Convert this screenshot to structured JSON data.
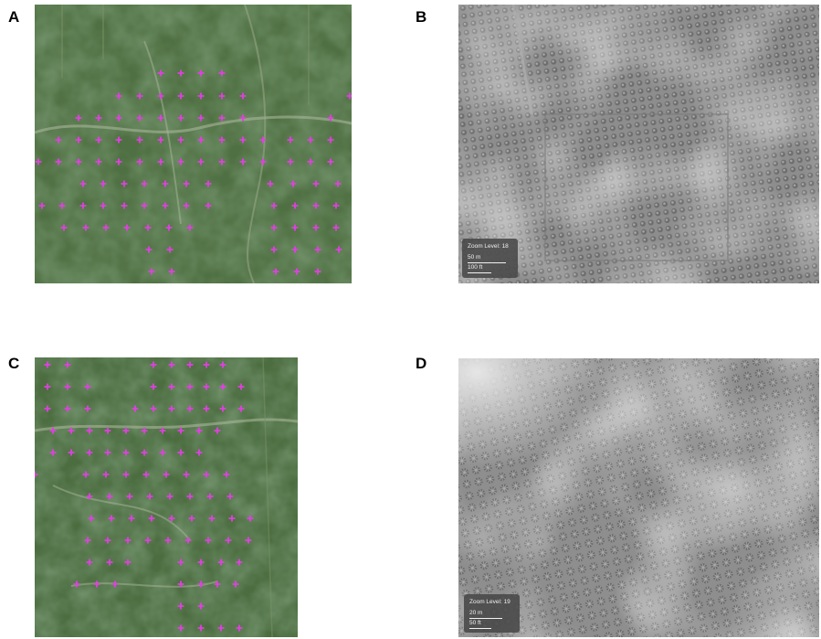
{
  "panels": [
    {
      "label": "A",
      "kind": "satellite-with-markers"
    },
    {
      "label": "B",
      "kind": "drone-grayscale",
      "zoom_text": "Zoom Level: 18",
      "scale_metric": "50 m",
      "scale_imperial": "100 ft"
    },
    {
      "label": "C",
      "kind": "satellite-with-markers"
    },
    {
      "label": "D",
      "kind": "drone-grayscale",
      "zoom_text": "Zoom Level: 19",
      "scale_metric": "20 m",
      "scale_imperial": "50 ft"
    }
  ],
  "colors": {
    "marker": "#e040e0",
    "vegetation_dark": "#3a5a30",
    "vegetation_light": "#6e8a5a",
    "drone_gray": "#8a8a8a",
    "scalebox_bg": "#484848"
  },
  "icons": {
    "marker": "plus-marker-icon"
  }
}
